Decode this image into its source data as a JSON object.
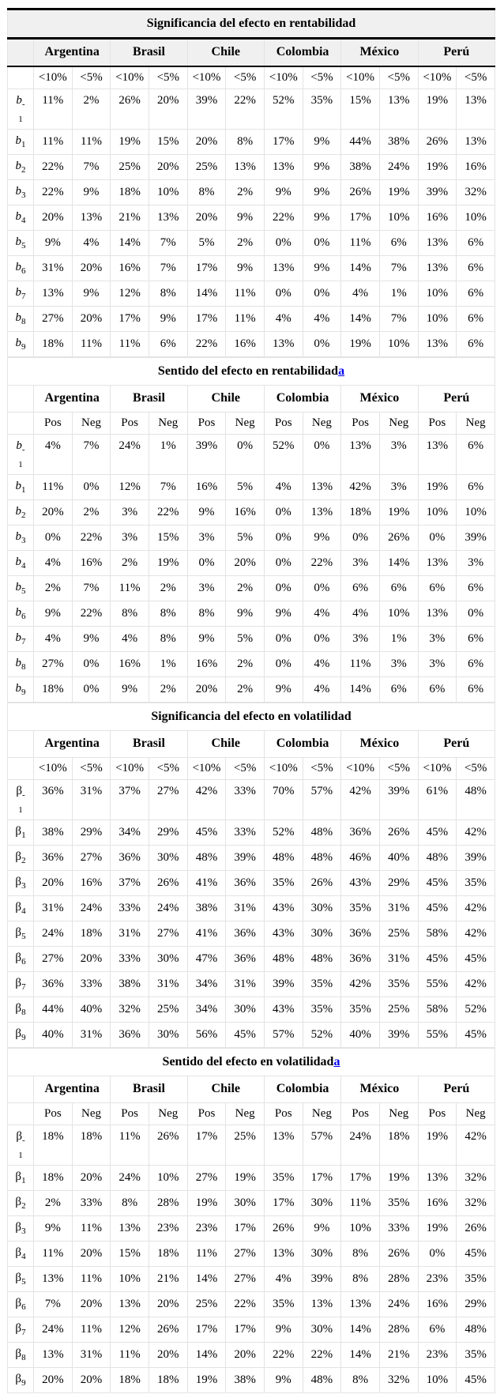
{
  "colors": {
    "header_band_bg": "#f0f0f0",
    "grid_line": "#e3e3e3",
    "heavy_rule": "#000000",
    "footnote_link": "#0000ee",
    "text": "#000000"
  },
  "sections": [
    {
      "title": "Significancia del efecto en rentabilidad",
      "countries": [
        "Argentina",
        "Brasil",
        "Chile",
        "Colombia",
        "México",
        "Perú"
      ],
      "subheaders": [
        "<10%",
        "<5%"
      ],
      "row_symbol": "b",
      "row_symbol_italic": true,
      "rows": [
        {
          "sub": "-1",
          "values": [
            "11%",
            "2%",
            "26%",
            "20%",
            "39%",
            "22%",
            "52%",
            "35%",
            "15%",
            "13%",
            "19%",
            "13%"
          ]
        },
        {
          "sub": "1",
          "values": [
            "11%",
            "11%",
            "19%",
            "15%",
            "20%",
            "8%",
            "17%",
            "9%",
            "44%",
            "38%",
            "26%",
            "13%"
          ]
        },
        {
          "sub": "2",
          "values": [
            "22%",
            "7%",
            "25%",
            "20%",
            "25%",
            "13%",
            "13%",
            "9%",
            "38%",
            "24%",
            "19%",
            "16%"
          ]
        },
        {
          "sub": "3",
          "values": [
            "22%",
            "9%",
            "18%",
            "10%",
            "8%",
            "2%",
            "9%",
            "9%",
            "26%",
            "19%",
            "39%",
            "32%"
          ]
        },
        {
          "sub": "4",
          "values": [
            "20%",
            "13%",
            "21%",
            "13%",
            "20%",
            "9%",
            "22%",
            "9%",
            "17%",
            "10%",
            "16%",
            "10%"
          ]
        },
        {
          "sub": "5",
          "values": [
            "9%",
            "4%",
            "14%",
            "7%",
            "5%",
            "2%",
            "0%",
            "0%",
            "11%",
            "6%",
            "13%",
            "6%"
          ]
        },
        {
          "sub": "6",
          "values": [
            "31%",
            "20%",
            "16%",
            "7%",
            "17%",
            "9%",
            "13%",
            "9%",
            "14%",
            "7%",
            "13%",
            "6%"
          ]
        },
        {
          "sub": "7",
          "values": [
            "13%",
            "9%",
            "12%",
            "8%",
            "14%",
            "11%",
            "0%",
            "0%",
            "4%",
            "1%",
            "10%",
            "6%"
          ]
        },
        {
          "sub": "8",
          "values": [
            "27%",
            "20%",
            "17%",
            "9%",
            "17%",
            "11%",
            "4%",
            "4%",
            "14%",
            "7%",
            "10%",
            "6%"
          ]
        },
        {
          "sub": "9",
          "values": [
            "18%",
            "11%",
            "11%",
            "6%",
            "22%",
            "16%",
            "13%",
            "0%",
            "19%",
            "10%",
            "13%",
            "6%"
          ]
        }
      ]
    },
    {
      "title": "Sentido del efecto en rentabilidad",
      "footnote": "a",
      "countries": [
        "Argentina",
        "Brasil",
        "Chile",
        "Colombia",
        "México",
        "Perú"
      ],
      "subheaders": [
        "Pos",
        "Neg"
      ],
      "row_symbol": "b",
      "row_symbol_italic": true,
      "rows": [
        {
          "sub": "-1",
          "values": [
            "4%",
            "7%",
            "24%",
            "1%",
            "39%",
            "0%",
            "52%",
            "0%",
            "13%",
            "3%",
            "13%",
            "6%"
          ]
        },
        {
          "sub": "1",
          "values": [
            "11%",
            "0%",
            "12%",
            "7%",
            "16%",
            "5%",
            "4%",
            "13%",
            "42%",
            "3%",
            "19%",
            "6%"
          ]
        },
        {
          "sub": "2",
          "values": [
            "20%",
            "2%",
            "3%",
            "22%",
            "9%",
            "16%",
            "0%",
            "13%",
            "18%",
            "19%",
            "10%",
            "10%"
          ]
        },
        {
          "sub": "3",
          "values": [
            "0%",
            "22%",
            "3%",
            "15%",
            "3%",
            "5%",
            "0%",
            "9%",
            "0%",
            "26%",
            "0%",
            "39%"
          ]
        },
        {
          "sub": "4",
          "values": [
            "4%",
            "16%",
            "2%",
            "19%",
            "0%",
            "20%",
            "0%",
            "22%",
            "3%",
            "14%",
            "13%",
            "3%"
          ]
        },
        {
          "sub": "5",
          "values": [
            "2%",
            "7%",
            "11%",
            "2%",
            "3%",
            "2%",
            "0%",
            "0%",
            "6%",
            "6%",
            "6%",
            "6%"
          ]
        },
        {
          "sub": "6",
          "values": [
            "9%",
            "22%",
            "8%",
            "8%",
            "8%",
            "9%",
            "9%",
            "4%",
            "4%",
            "10%",
            "13%",
            "0%"
          ]
        },
        {
          "sub": "7",
          "values": [
            "4%",
            "9%",
            "4%",
            "8%",
            "9%",
            "5%",
            "0%",
            "0%",
            "3%",
            "1%",
            "3%",
            "6%"
          ]
        },
        {
          "sub": "8",
          "values": [
            "27%",
            "0%",
            "16%",
            "1%",
            "16%",
            "2%",
            "0%",
            "4%",
            "11%",
            "3%",
            "3%",
            "6%"
          ]
        },
        {
          "sub": "9",
          "values": [
            "18%",
            "0%",
            "9%",
            "2%",
            "20%",
            "2%",
            "9%",
            "4%",
            "14%",
            "6%",
            "6%",
            "6%"
          ]
        }
      ]
    },
    {
      "title": "Significancia del efecto en volatilidad",
      "countries": [
        "Argentina",
        "Brasil",
        "Chile",
        "Colombia",
        "México",
        "Perú"
      ],
      "subheaders": [
        "<10%",
        "<5%"
      ],
      "row_symbol": "β",
      "row_symbol_italic": false,
      "rows": [
        {
          "sub": "-1",
          "values": [
            "36%",
            "31%",
            "37%",
            "27%",
            "42%",
            "33%",
            "70%",
            "57%",
            "42%",
            "39%",
            "61%",
            "48%"
          ]
        },
        {
          "sub": "1",
          "values": [
            "38%",
            "29%",
            "34%",
            "29%",
            "45%",
            "33%",
            "52%",
            "48%",
            "36%",
            "26%",
            "45%",
            "42%"
          ]
        },
        {
          "sub": "2",
          "values": [
            "36%",
            "27%",
            "36%",
            "30%",
            "48%",
            "39%",
            "48%",
            "48%",
            "46%",
            "40%",
            "48%",
            "39%"
          ]
        },
        {
          "sub": "3",
          "values": [
            "20%",
            "16%",
            "37%",
            "26%",
            "41%",
            "36%",
            "35%",
            "26%",
            "43%",
            "29%",
            "45%",
            "35%"
          ]
        },
        {
          "sub": "4",
          "values": [
            "31%",
            "24%",
            "33%",
            "24%",
            "38%",
            "31%",
            "43%",
            "30%",
            "35%",
            "31%",
            "45%",
            "42%"
          ]
        },
        {
          "sub": "5",
          "values": [
            "24%",
            "18%",
            "31%",
            "27%",
            "41%",
            "36%",
            "43%",
            "30%",
            "36%",
            "25%",
            "58%",
            "42%"
          ]
        },
        {
          "sub": "6",
          "values": [
            "27%",
            "20%",
            "33%",
            "30%",
            "47%",
            "36%",
            "48%",
            "48%",
            "36%",
            "31%",
            "45%",
            "45%"
          ]
        },
        {
          "sub": "7",
          "values": [
            "36%",
            "33%",
            "38%",
            "31%",
            "34%",
            "31%",
            "39%",
            "35%",
            "42%",
            "35%",
            "55%",
            "42%"
          ]
        },
        {
          "sub": "8",
          "values": [
            "44%",
            "40%",
            "32%",
            "25%",
            "34%",
            "30%",
            "43%",
            "35%",
            "35%",
            "25%",
            "58%",
            "52%"
          ]
        },
        {
          "sub": "9",
          "values": [
            "40%",
            "31%",
            "36%",
            "30%",
            "56%",
            "45%",
            "57%",
            "52%",
            "40%",
            "39%",
            "55%",
            "45%"
          ]
        }
      ]
    },
    {
      "title": "Sentido del efecto en volatilidad",
      "footnote": "a",
      "countries": [
        "Argentina",
        "Brasil",
        "Chile",
        "Colombia",
        "México",
        "Perú"
      ],
      "subheaders": [
        "Pos",
        "Neg"
      ],
      "row_symbol": "β",
      "row_symbol_italic": false,
      "rows": [
        {
          "sub": "-1",
          "values": [
            "18%",
            "18%",
            "11%",
            "26%",
            "17%",
            "25%",
            "13%",
            "57%",
            "24%",
            "18%",
            "19%",
            "42%"
          ]
        },
        {
          "sub": "1",
          "values": [
            "18%",
            "20%",
            "24%",
            "10%",
            "27%",
            "19%",
            "35%",
            "17%",
            "17%",
            "19%",
            "13%",
            "32%"
          ]
        },
        {
          "sub": "2",
          "values": [
            "2%",
            "33%",
            "8%",
            "28%",
            "19%",
            "30%",
            "17%",
            "30%",
            "11%",
            "35%",
            "16%",
            "32%"
          ]
        },
        {
          "sub": "3",
          "values": [
            "9%",
            "11%",
            "13%",
            "23%",
            "23%",
            "17%",
            "26%",
            "9%",
            "10%",
            "33%",
            "19%",
            "26%"
          ]
        },
        {
          "sub": "4",
          "values": [
            "11%",
            "20%",
            "15%",
            "18%",
            "11%",
            "27%",
            "13%",
            "30%",
            "8%",
            "26%",
            "0%",
            "45%"
          ]
        },
        {
          "sub": "5",
          "values": [
            "13%",
            "11%",
            "10%",
            "21%",
            "14%",
            "27%",
            "4%",
            "39%",
            "8%",
            "28%",
            "23%",
            "35%"
          ]
        },
        {
          "sub": "6",
          "values": [
            "7%",
            "20%",
            "13%",
            "20%",
            "25%",
            "22%",
            "35%",
            "13%",
            "13%",
            "24%",
            "16%",
            "29%"
          ]
        },
        {
          "sub": "7",
          "values": [
            "24%",
            "11%",
            "12%",
            "26%",
            "17%",
            "17%",
            "9%",
            "30%",
            "14%",
            "28%",
            "6%",
            "48%"
          ]
        },
        {
          "sub": "8",
          "values": [
            "13%",
            "31%",
            "11%",
            "20%",
            "14%",
            "20%",
            "22%",
            "22%",
            "14%",
            "21%",
            "23%",
            "35%"
          ]
        },
        {
          "sub": "9",
          "values": [
            "20%",
            "20%",
            "18%",
            "18%",
            "19%",
            "38%",
            "9%",
            "48%",
            "8%",
            "32%",
            "10%",
            "45%"
          ]
        }
      ]
    }
  ]
}
